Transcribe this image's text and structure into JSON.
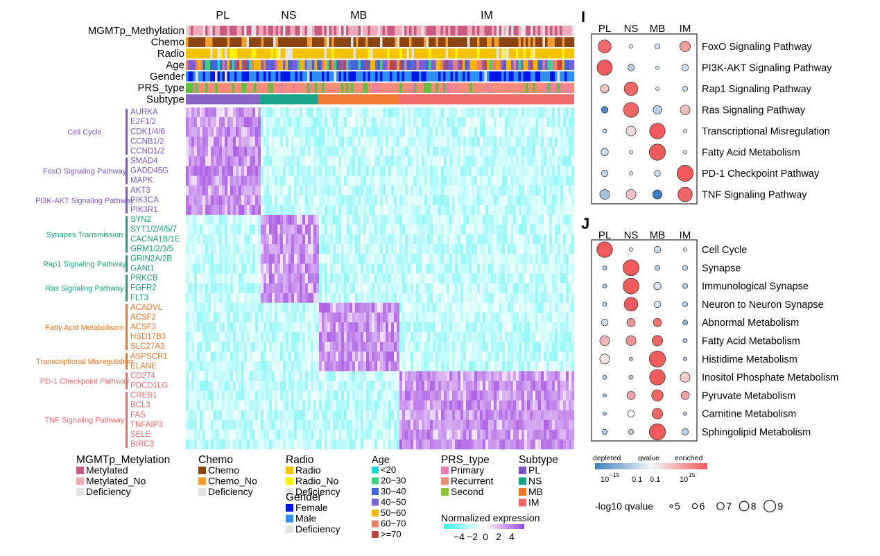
{
  "chart_data": [
    {
      "type": "heatmap",
      "subtypes": [
        {
          "name": "PL",
          "color": "#8a63c4",
          "share": 0.19
        },
        {
          "name": "NS",
          "color": "#1aa58a",
          "share": 0.15
        },
        {
          "name": "MB",
          "color": "#f07a32",
          "share": 0.21
        },
        {
          "name": "IM",
          "color": "#f36868",
          "share": 0.45
        }
      ],
      "annotation_tracks": [
        {
          "label": "MGMTp_Methylation",
          "palette": [
            "#c95a82",
            "#efaab8",
            "#e3e3e3"
          ],
          "weights": [
            0.45,
            0.4,
            0.15
          ]
        },
        {
          "label": "Chemo",
          "palette": [
            "#8b4513",
            "#f39c32",
            "#e3e3e3"
          ],
          "weights": [
            0.72,
            0.2,
            0.08
          ]
        },
        {
          "label": "Radio",
          "palette": [
            "#f5c200",
            "#fff200",
            "#e3e3e3"
          ],
          "weights": [
            0.8,
            0.12,
            0.08
          ]
        },
        {
          "label": "Age",
          "palette": [
            "#1ad8d8",
            "#3cd67a",
            "#4463d8",
            "#7b5fd8",
            "#f5b400",
            "#ef7d6b",
            "#c0463c"
          ],
          "weights": [
            0.04,
            0.08,
            0.16,
            0.2,
            0.24,
            0.18,
            0.1
          ]
        },
        {
          "label": "Gender",
          "palette": [
            "#0015e8",
            "#2f8ff0",
            "#e3e3e3"
          ],
          "weights": [
            0.42,
            0.53,
            0.05
          ]
        },
        {
          "label": "PRS_type",
          "palette": [
            "#ef79b0",
            "#f28b7a",
            "#5cc23a"
          ],
          "weights": [
            0.1,
            0.7,
            0.2
          ]
        },
        {
          "label": "Subtype",
          "palette": [],
          "weights": []
        }
      ],
      "gene_groups": [
        {
          "pathway": "Cell Cycle",
          "subtype": "PL",
          "color": "#7b55c2",
          "genes": [
            "AURKA",
            "E2F1/2",
            "CDK1/4/6",
            "CCNB1/2",
            "CCND1/2"
          ]
        },
        {
          "pathway": "FoxO Signaling Pathway",
          "subtype": "PL",
          "color": "#7b55c2",
          "genes": [
            "SMAD4",
            "GADD45G",
            "MAPK"
          ]
        },
        {
          "pathway": "PI3K-AKT Signaling Pathway",
          "subtype": "PL",
          "color": "#7b55c2",
          "genes": [
            "AKT3",
            "PIK3CA",
            "PIK3R1"
          ]
        },
        {
          "pathway": "Synapes Transmission",
          "subtype": "NS",
          "color": "#14a07e",
          "genes": [
            "SYN2",
            "SYT1/2/4/5/7",
            "CACNA1B/1E",
            "GRM1/2/3/5"
          ]
        },
        {
          "pathway": "Rap1 Signaling Pathway",
          "subtype": "NS",
          "color": "#14a07e",
          "genes": [
            "GRIN2A/2B",
            "GANI1"
          ]
        },
        {
          "pathway": "Ras Signaling Pathway",
          "subtype": "NS",
          "color": "#14a07e",
          "genes": [
            "PRKCB",
            "FGFR2",
            "FLT3"
          ]
        },
        {
          "pathway": "Fatty Acid Metabolisom",
          "subtype": "MB",
          "color": "#ee7426",
          "genes": [
            "ACADVL",
            "ACSF2",
            "ACSF3",
            "HSD17B3",
            "SLC27A3"
          ]
        },
        {
          "pathway": "Transcriptional Misregulation",
          "subtype": "MB",
          "color": "#ee7426",
          "genes": [
            "ASPSCR1",
            "ELANE"
          ]
        },
        {
          "pathway": "PD-1 Checkpoint Pathway",
          "subtype": "IM",
          "color": "#f06565",
          "genes": [
            "CD274",
            "PDCD1LG"
          ]
        },
        {
          "pathway": "TNF Signaling Pathway",
          "subtype": "IM",
          "color": "#f06565",
          "genes": [
            "CREB1",
            "BCL3",
            "FAS",
            "TNFAIP3",
            "SELE",
            "BIRC3"
          ]
        }
      ],
      "legends": [
        {
          "title": "MGMTp_Metylation",
          "items": [
            {
              "label": "Metylated",
              "color": "#c95a82"
            },
            {
              "label": "Metylated_No",
              "color": "#efaab8"
            },
            {
              "label": "Deficiency",
              "color": "#e3e3e3"
            }
          ]
        },
        {
          "title": "Chemo",
          "items": [
            {
              "label": "Chemo",
              "color": "#8b4513"
            },
            {
              "label": "Chemo_No",
              "color": "#f39c32"
            },
            {
              "label": "Deficiency",
              "color": "#e3e3e3"
            }
          ]
        },
        {
          "title": "Radio",
          "items": [
            {
              "label": "Radio",
              "color": "#f5c200"
            },
            {
              "label": "Radio_No",
              "color": "#fff200"
            },
            {
              "label": "Deficiency",
              "color": "#e3e3e3"
            }
          ]
        },
        {
          "title": "Gender",
          "items": [
            {
              "label": "Female",
              "color": "#0015e8"
            },
            {
              "label": "Male",
              "color": "#2f8ff0"
            },
            {
              "label": "Deficiency",
              "color": "#e3e3e3"
            }
          ]
        },
        {
          "title": "Age",
          "items": [
            {
              "label": "<20",
              "color": "#1ad8d8"
            },
            {
              "label": "20~30",
              "color": "#3cd67a"
            },
            {
              "label": "30~40",
              "color": "#4463d8"
            },
            {
              "label": "40~50",
              "color": "#7b5fd8"
            },
            {
              "label": "50~60",
              "color": "#f5b400"
            },
            {
              "label": "60~70",
              "color": "#ef7d6b"
            },
            {
              "label": ">=70",
              "color": "#c0463c"
            }
          ]
        },
        {
          "title": "PRS_type",
          "items": [
            {
              "label": "Primary",
              "color": "#ef79b0"
            },
            {
              "label": "Recurrent",
              "color": "#f28b7a"
            },
            {
              "label": "Second",
              "color": "#8fc43a"
            }
          ]
        },
        {
          "title": "Subtype",
          "items": [
            {
              "label": "PL",
              "color": "#7b55c2"
            },
            {
              "label": "NS",
              "color": "#14a07e"
            },
            {
              "label": "MB",
              "color": "#ee7426"
            },
            {
              "label": "IM",
              "color": "#f06565"
            }
          ]
        }
      ],
      "expression_scale": {
        "title": "Normalized expression",
        "ticks": [
          "−4",
          "−2",
          "0",
          "2",
          "4"
        ],
        "low_color": "#3ff0f0",
        "mid_color": "#ffffff",
        "high_color": "#a145e0"
      }
    },
    {
      "type": "scatter",
      "panel_label": "I",
      "columns": [
        "PL",
        "NS",
        "MB",
        "IM"
      ],
      "rows": [
        {
          "label": "FoxO Signaling Pathway",
          "cells": [
            {
              "z": 8.5,
              "size": 8.0
            },
            {
              "z": -0.3,
              "size": 5.0
            },
            {
              "z": -0.8,
              "size": 5.5
            },
            {
              "z": 4.5,
              "size": 7.2
            }
          ]
        },
        {
          "label": "PI3K-AKT Signaling Pathway",
          "cells": [
            {
              "z": 10.0,
              "size": 8.7
            },
            {
              "z": -2.0,
              "size": 6.0
            },
            {
              "z": -0.3,
              "size": 5.0
            },
            {
              "z": -1.0,
              "size": 6.0
            }
          ]
        },
        {
          "label": "Rap1 Signaling Pathway",
          "cells": [
            {
              "z": 2.0,
              "size": 6.5
            },
            {
              "z": 9.0,
              "size": 8.2
            },
            {
              "z": -0.3,
              "size": 5.0
            },
            {
              "z": -1.0,
              "size": 5.5
            }
          ]
        },
        {
          "label": "Ras Signaling Pathway",
          "cells": [
            {
              "z": -9.0,
              "size": 6.0
            },
            {
              "z": 9.0,
              "size": 8.6
            },
            {
              "z": -2.0,
              "size": 6.6
            },
            {
              "z": 2.5,
              "size": 7.0
            }
          ]
        },
        {
          "label": "Transcriptional Misregulation",
          "cells": [
            {
              "z": -1.0,
              "size": 5.2
            },
            {
              "z": 1.0,
              "size": 7.0
            },
            {
              "z": 10.0,
              "size": 8.8
            },
            {
              "z": -0.3,
              "size": 5.0
            }
          ]
        },
        {
          "label": "Fatty Acid Metabolism",
          "cells": [
            {
              "z": -1.0,
              "size": 6.2
            },
            {
              "z": -0.3,
              "size": 5.0
            },
            {
              "z": 10.0,
              "size": 9.0
            },
            {
              "z": -0.3,
              "size": 5.0
            }
          ]
        },
        {
          "label": "PD-1 Checkpoint Pathway",
          "cells": [
            {
              "z": -1.5,
              "size": 6.0
            },
            {
              "z": -0.3,
              "size": 5.0
            },
            {
              "z": -1.0,
              "size": 5.8
            },
            {
              "z": 10.0,
              "size": 9.0
            }
          ]
        },
        {
          "label": "TNF Signaling Pathway",
          "cells": [
            {
              "z": -3.0,
              "size": 7.0
            },
            {
              "z": 2.0,
              "size": 7.0
            },
            {
              "z": -10.0,
              "size": 6.8
            },
            {
              "z": 9.0,
              "size": 8.4
            }
          ]
        }
      ]
    },
    {
      "type": "scatter",
      "panel_label": "J",
      "columns": [
        "PL",
        "NS",
        "MB",
        "IM"
      ],
      "rows": [
        {
          "label": "Cell Cycle",
          "cells": [
            {
              "z": 10.0,
              "size": 8.8
            },
            {
              "z": -0.3,
              "size": 5.0
            },
            {
              "z": -1.0,
              "size": 6.0
            },
            {
              "z": -0.3,
              "size": 5.0
            }
          ]
        },
        {
          "label": "Synapse",
          "cells": [
            {
              "z": -2.0,
              "size": 5.2
            },
            {
              "z": 10.0,
              "size": 8.9
            },
            {
              "z": -2.0,
              "size": 5.5
            },
            {
              "z": -2.0,
              "size": 5.5
            }
          ]
        },
        {
          "label": "Immunological Synapse",
          "cells": [
            {
              "z": -2.0,
              "size": 5.2
            },
            {
              "z": 10.0,
              "size": 8.9
            },
            {
              "z": -0.5,
              "size": 6.2
            },
            {
              "z": -2.0,
              "size": 5.5
            }
          ]
        },
        {
          "label": "Neuron to Neuron Synapse",
          "cells": [
            {
              "z": -2.0,
              "size": 5.2
            },
            {
              "z": 10.0,
              "size": 8.2
            },
            {
              "z": -0.5,
              "size": 6.0
            },
            {
              "z": -2.0,
              "size": 5.5
            }
          ]
        },
        {
          "label": "Abnormal Metabolism",
          "cells": [
            {
              "z": -1.0,
              "size": 6.0
            },
            {
              "z": 5.0,
              "size": 6.5
            },
            {
              "z": 8.0,
              "size": 6.5
            },
            {
              "z": -4.0,
              "size": 5.5
            }
          ]
        },
        {
          "label": "Fatty Acid Metabolism",
          "cells": [
            {
              "z": 3.0,
              "size": 7.0
            },
            {
              "z": 5.0,
              "size": 7.0
            },
            {
              "z": 9.0,
              "size": 7.2
            },
            {
              "z": -2.0,
              "size": 5.2
            }
          ]
        },
        {
          "label": "Histidime Metabolism",
          "cells": [
            {
              "z": 0.5,
              "size": 7.0
            },
            {
              "z": -2.0,
              "size": 5.0
            },
            {
              "z": 10.0,
              "size": 9.0
            },
            {
              "z": -2.0,
              "size": 5.0
            }
          ]
        },
        {
          "label": "Inositol Phosphate Metabolism",
          "cells": [
            {
              "z": -2.0,
              "size": 5.2
            },
            {
              "z": -2.0,
              "size": 5.2
            },
            {
              "z": 10.0,
              "size": 8.8
            },
            {
              "z": 1.5,
              "size": 7.0
            }
          ]
        },
        {
          "label": "Pyruvate Metabolism",
          "cells": [
            {
              "z": -2.0,
              "size": 5.0
            },
            {
              "z": 4.0,
              "size": 6.5
            },
            {
              "z": 9.0,
              "size": 7.5
            },
            {
              "z": 4.0,
              "size": 6.5
            }
          ]
        },
        {
          "label": "Carnitine Metabolism",
          "cells": [
            {
              "z": -2.0,
              "size": 5.0
            },
            {
              "z": 0.0,
              "size": 6.0
            },
            {
              "z": 9.0,
              "size": 7.2
            },
            {
              "z": -2.0,
              "size": 5.0
            }
          ]
        },
        {
          "label": "Sphingolipid Metabolism",
          "cells": [
            {
              "z": -2.0,
              "size": 5.5
            },
            {
              "z": -2.0,
              "size": 5.5
            },
            {
              "z": 10.0,
              "size": 9.0
            },
            {
              "z": -2.0,
              "size": 6.0
            }
          ]
        }
      ],
      "legend": {
        "color_title_left": "depleted",
        "color_title_mid": "qvalue",
        "color_title_right": "enriched",
        "color_ticks": [
          "10",
          "−15",
          "0.1",
          "0.1",
          "10",
          "15"
        ],
        "size_title": "-log10 qvalue",
        "size_values": [
          "5",
          "6",
          "7",
          "8",
          "9"
        ]
      }
    }
  ]
}
